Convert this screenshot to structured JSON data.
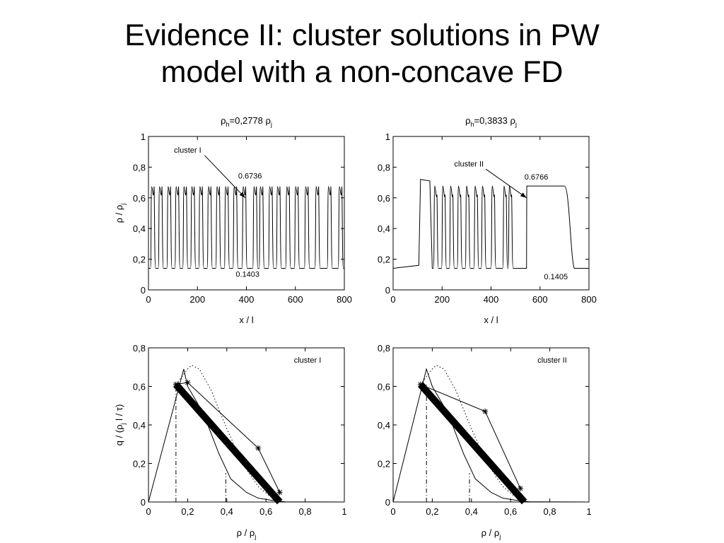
{
  "slide": {
    "title_line1": "Evidence II: cluster solutions in PW",
    "title_line2": "model with a non-concave FD"
  },
  "chart_data": [
    {
      "type": "line",
      "title": "ρh=0,2778 ρj",
      "title_main": "ρ",
      "title_sub1": "h",
      "title_mid": "=0,2778 ρ",
      "title_sub2": "j",
      "xlabel": "x / l",
      "ylabel_main": "ρ / ρ",
      "ylabel_sub": "j",
      "xlim": [
        0,
        800
      ],
      "ylim": [
        0,
        1
      ],
      "xticks": [
        0,
        200,
        400,
        600,
        800
      ],
      "yticks": [
        0,
        0.2,
        0.4,
        0.6,
        0.8,
        1
      ],
      "xtick_labels": [
        "0",
        "200",
        "400",
        "600",
        "800"
      ],
      "ytick_labels": [
        "0",
        "0.2",
        "0.4",
        "0.6",
        "0.8",
        "1"
      ],
      "ytick_labels_shown": [
        "0",
        "0,2",
        "0,4",
        "0,6",
        "0,8",
        "1"
      ],
      "grid": false,
      "profile": {
        "low": 0.1403,
        "high": 0.6736,
        "pulse_starts": [
          8,
          40,
          75,
          108,
          140,
          172,
          205,
          240,
          275,
          310,
          345,
          382,
          426,
          452,
          490,
          522,
          560,
          596,
          637,
          680,
          730,
          775
        ],
        "gap_after": 395,
        "gap_width": 10
      },
      "annotations": [
        {
          "text": "cluster I",
          "x": 160,
          "y": 0.895,
          "arrow_to": [
            395,
            0.6
          ]
        },
        {
          "text": "0.6736",
          "x": 415,
          "y": 0.725
        },
        {
          "text": "0.1403",
          "x": 405,
          "y": 0.085
        }
      ]
    },
    {
      "type": "line",
      "title": "ρh=0,3833 ρj",
      "title_main": "ρ",
      "title_sub1": "h",
      "title_mid": "=0,3833 ρ",
      "title_sub2": "j",
      "xlabel": "x / l",
      "ylabel_main": "",
      "ylabel_sub": "",
      "xlim": [
        0,
        800
      ],
      "ylim": [
        0,
        1
      ],
      "xticks": [
        0,
        200,
        400,
        600,
        800
      ],
      "yticks": [
        0,
        0.2,
        0.4,
        0.6,
        0.8,
        1
      ],
      "xtick_labels": [
        "0",
        "200",
        "400",
        "600",
        "800"
      ],
      "ytick_labels_shown": [
        "0",
        "0,2",
        "0,4",
        "0,6",
        "0,8",
        "1"
      ],
      "grid": false,
      "profile": {
        "low": 0.1405,
        "high": 0.6766,
        "first_high": 0.72,
        "segments": [
          {
            "x0": 0,
            "x1": 110,
            "y": 0.1405
          },
          {
            "x0": 110,
            "x1": 160,
            "y": 0.72,
            "pulse": true
          },
          {
            "x0": 160,
            "x1": 440,
            "y": 0.6766,
            "pulses": [
              165,
              198,
              230,
              262,
              295,
              330,
              360,
              400,
              448,
              470
            ]
          },
          {
            "x0": 545,
            "x1": 735,
            "y": 0.6766,
            "pulse": true
          },
          {
            "x0": 735,
            "x1": 800,
            "y": 0.1405
          }
        ]
      },
      "annotations": [
        {
          "text": "cluster II",
          "x": 310,
          "y": 0.805,
          "arrow_to": [
            545,
            0.6
          ]
        },
        {
          "text": "0.6766",
          "x": 585,
          "y": 0.72
        },
        {
          "text": "0.1405",
          "x": 665,
          "y": 0.07
        }
      ]
    },
    {
      "type": "line",
      "title": "",
      "legend_text": "cluster I",
      "xlabel_main": "ρ / ρ",
      "xlabel_sub": "j",
      "ylabel_main": "q / (ρ",
      "ylabel_sub": "j",
      "ylabel_end": " l / τ)",
      "xlim": [
        0,
        1
      ],
      "ylim": [
        0,
        0.8
      ],
      "xticks": [
        0,
        0.2,
        0.4,
        0.6,
        0.8,
        1
      ],
      "yticks": [
        0,
        0.2,
        0.4,
        0.6,
        0.8
      ],
      "xtick_labels_shown": [
        "0",
        "0,2",
        "0,4",
        "0,6",
        "0,8",
        "1"
      ],
      "ytick_labels_shown": [
        "0",
        "0,2",
        "0,4",
        "0,6",
        "0,8"
      ],
      "grid": false,
      "series": [
        {
          "style": "solid",
          "x": [
            0,
            0.18,
            0.2,
            0.28,
            0.36,
            0.42,
            0.5,
            0.56,
            0.62,
            0.67,
            0.7,
            1
          ],
          "y": [
            0,
            0.69,
            0.6,
            0.46,
            0.25,
            0.12,
            0.05,
            0.02,
            0.01,
            0.003,
            0.001,
            0
          ]
        },
        {
          "style": "dotted",
          "x": [
            0.14,
            0.2,
            0.22,
            0.26,
            0.32,
            0.4,
            0.48,
            0.56,
            0.62,
            0.68
          ],
          "y": [
            0.61,
            0.69,
            0.71,
            0.69,
            0.58,
            0.38,
            0.2,
            0.08,
            0.03,
            0.0
          ]
        },
        {
          "style": "thick",
          "x": [
            0.14,
            0.6703
          ],
          "y": [
            0.61,
            0.0
          ]
        },
        {
          "style": "star-line",
          "x": [
            0.14,
            0.2,
            0.56,
            0.67
          ],
          "y": [
            0.61,
            0.62,
            0.28,
            0.05
          ]
        }
      ],
      "vlines": [
        {
          "x": 0.1403,
          "y": 0.61,
          "style": "dashdot"
        },
        {
          "x": 0.395,
          "y": 0.15,
          "style": "dashdot"
        }
      ]
    },
    {
      "type": "line",
      "title": "",
      "legend_text": "cluster II",
      "xlabel_main": "ρ / ρ",
      "xlabel_sub": "j",
      "ylabel_main": "",
      "xlim": [
        0,
        1
      ],
      "ylim": [
        0,
        0.8
      ],
      "xticks": [
        0,
        0.2,
        0.4,
        0.6,
        0.8,
        1
      ],
      "yticks": [
        0,
        0.2,
        0.4,
        0.6,
        0.8
      ],
      "xtick_labels_shown": [
        "0",
        "0,2",
        "0,4",
        "0,6",
        "0,8",
        "1"
      ],
      "ytick_labels_shown": [
        "0",
        "0,2",
        "0,4",
        "0,6",
        "0,8"
      ],
      "grid": false,
      "series": [
        {
          "style": "solid",
          "x": [
            0,
            0.17,
            0.2,
            0.28,
            0.36,
            0.42,
            0.5,
            0.56,
            0.62,
            0.67,
            0.7,
            1
          ],
          "y": [
            0,
            0.69,
            0.6,
            0.46,
            0.25,
            0.12,
            0.05,
            0.02,
            0.01,
            0.003,
            0.001,
            0
          ]
        },
        {
          "style": "dotted",
          "x": [
            0.14,
            0.2,
            0.22,
            0.26,
            0.32,
            0.4,
            0.48,
            0.56,
            0.62,
            0.68
          ],
          "y": [
            0.61,
            0.69,
            0.71,
            0.69,
            0.58,
            0.38,
            0.2,
            0.08,
            0.03,
            0.0
          ]
        },
        {
          "style": "thick",
          "x": [
            0.14,
            0.6703
          ],
          "y": [
            0.61,
            0.0
          ]
        },
        {
          "style": "star-line",
          "x": [
            0.14,
            0.47,
            0.65
          ],
          "y": [
            0.61,
            0.47,
            0.07
          ]
        }
      ],
      "vlines": [
        {
          "x": 0.1703,
          "y": 0.61,
          "style": "dashdot"
        },
        {
          "x": 0.39,
          "y": 0.15,
          "style": "dashdot"
        }
      ]
    }
  ]
}
